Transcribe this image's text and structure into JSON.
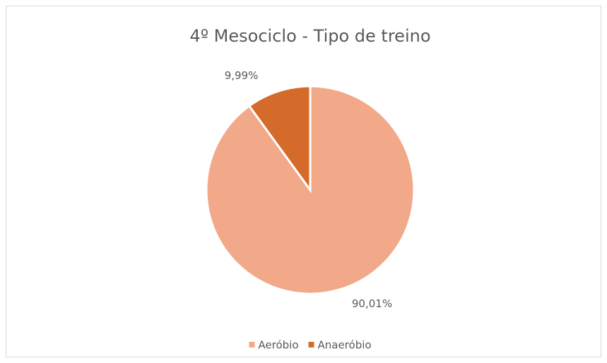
{
  "chart_data": {
    "type": "pie",
    "title": "4º Mesociclo - Tipo de treino",
    "categories": [
      "Aeróbio",
      "Anaeróbio"
    ],
    "values": [
      90.01,
      9.99
    ],
    "value_labels": [
      "90,01%",
      "9,99%"
    ],
    "colors": [
      "#f2a98a",
      "#d56b2a"
    ],
    "legend": "bottom"
  }
}
